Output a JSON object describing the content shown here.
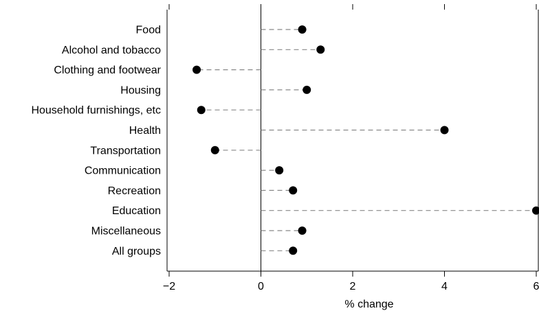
{
  "chart_data": {
    "type": "scatter",
    "style": "dot-plot",
    "categories": [
      "Food",
      "Alcohol and tobacco",
      "Clothing and footwear",
      "Housing",
      "Household furnishings, etc",
      "Health",
      "Transportation",
      "Communication",
      "Recreation",
      "Education",
      "Miscellaneous",
      "All groups"
    ],
    "values": [
      0.9,
      1.3,
      -1.4,
      1.0,
      -1.3,
      4.0,
      -1.0,
      0.4,
      0.7,
      6.0,
      0.9,
      0.7
    ],
    "xlabel": "% change",
    "xlim": [
      -2,
      6
    ],
    "xticks": [
      -2,
      0,
      2,
      4,
      6
    ],
    "xtick_labels": [
      "−2",
      "0",
      "2",
      "4",
      "6"
    ],
    "zero_line": true,
    "grid": false,
    "colors": {
      "marker": "#000000",
      "connector": "#888888",
      "axis": "#000000"
    }
  }
}
